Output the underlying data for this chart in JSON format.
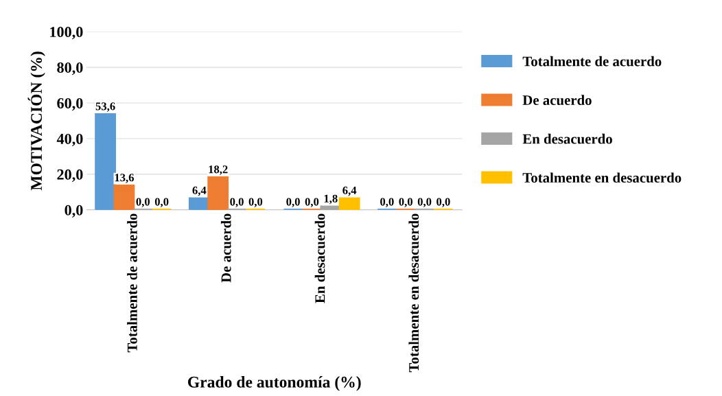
{
  "chart_data": {
    "type": "bar",
    "xlabel": "Grado de autonomía (%)",
    "ylabel": "MOTIVACIÓN (%)",
    "categories": [
      "Totalmente de acuerdo",
      "De acuerdo",
      "En desacuerdo",
      "Totalmente en desacuerdo"
    ],
    "series": [
      {
        "name": "Totalmente de acuerdo",
        "color": "#5b9bd5",
        "values": [
          53.6,
          6.4,
          0.0,
          0.0
        ],
        "value_labels": [
          "53,6",
          "6,4",
          "0,0",
          "0,0"
        ]
      },
      {
        "name": "De acuerdo",
        "color": "#ed7d31",
        "values": [
          13.6,
          18.2,
          0.0,
          0.0
        ],
        "value_labels": [
          "13,6",
          "18,2",
          "0,0",
          "0,0"
        ]
      },
      {
        "name": "En desacuerdo",
        "color": "#a5a5a5",
        "values": [
          0.0,
          0.0,
          1.8,
          0.0
        ],
        "value_labels": [
          "0,0",
          "0,0",
          "1,8",
          "0,0"
        ]
      },
      {
        "name": "Totalmente en desacuerdo",
        "color": "#ffc000",
        "values": [
          0.0,
          0.0,
          6.4,
          0.0
        ],
        "value_labels": [
          "0,0",
          "0,0",
          "6,4",
          "0,0"
        ]
      }
    ],
    "ylim": [
      0,
      100
    ],
    "yticks": [
      {
        "value": 0,
        "label": "0,0"
      },
      {
        "value": 20,
        "label": "20,0"
      },
      {
        "value": 40,
        "label": "40,0"
      },
      {
        "value": 60,
        "label": "60,0"
      },
      {
        "value": 80,
        "label": "80,0"
      },
      {
        "value": 100,
        "label": "100,0"
      }
    ],
    "grid": "y",
    "legend": "right"
  }
}
